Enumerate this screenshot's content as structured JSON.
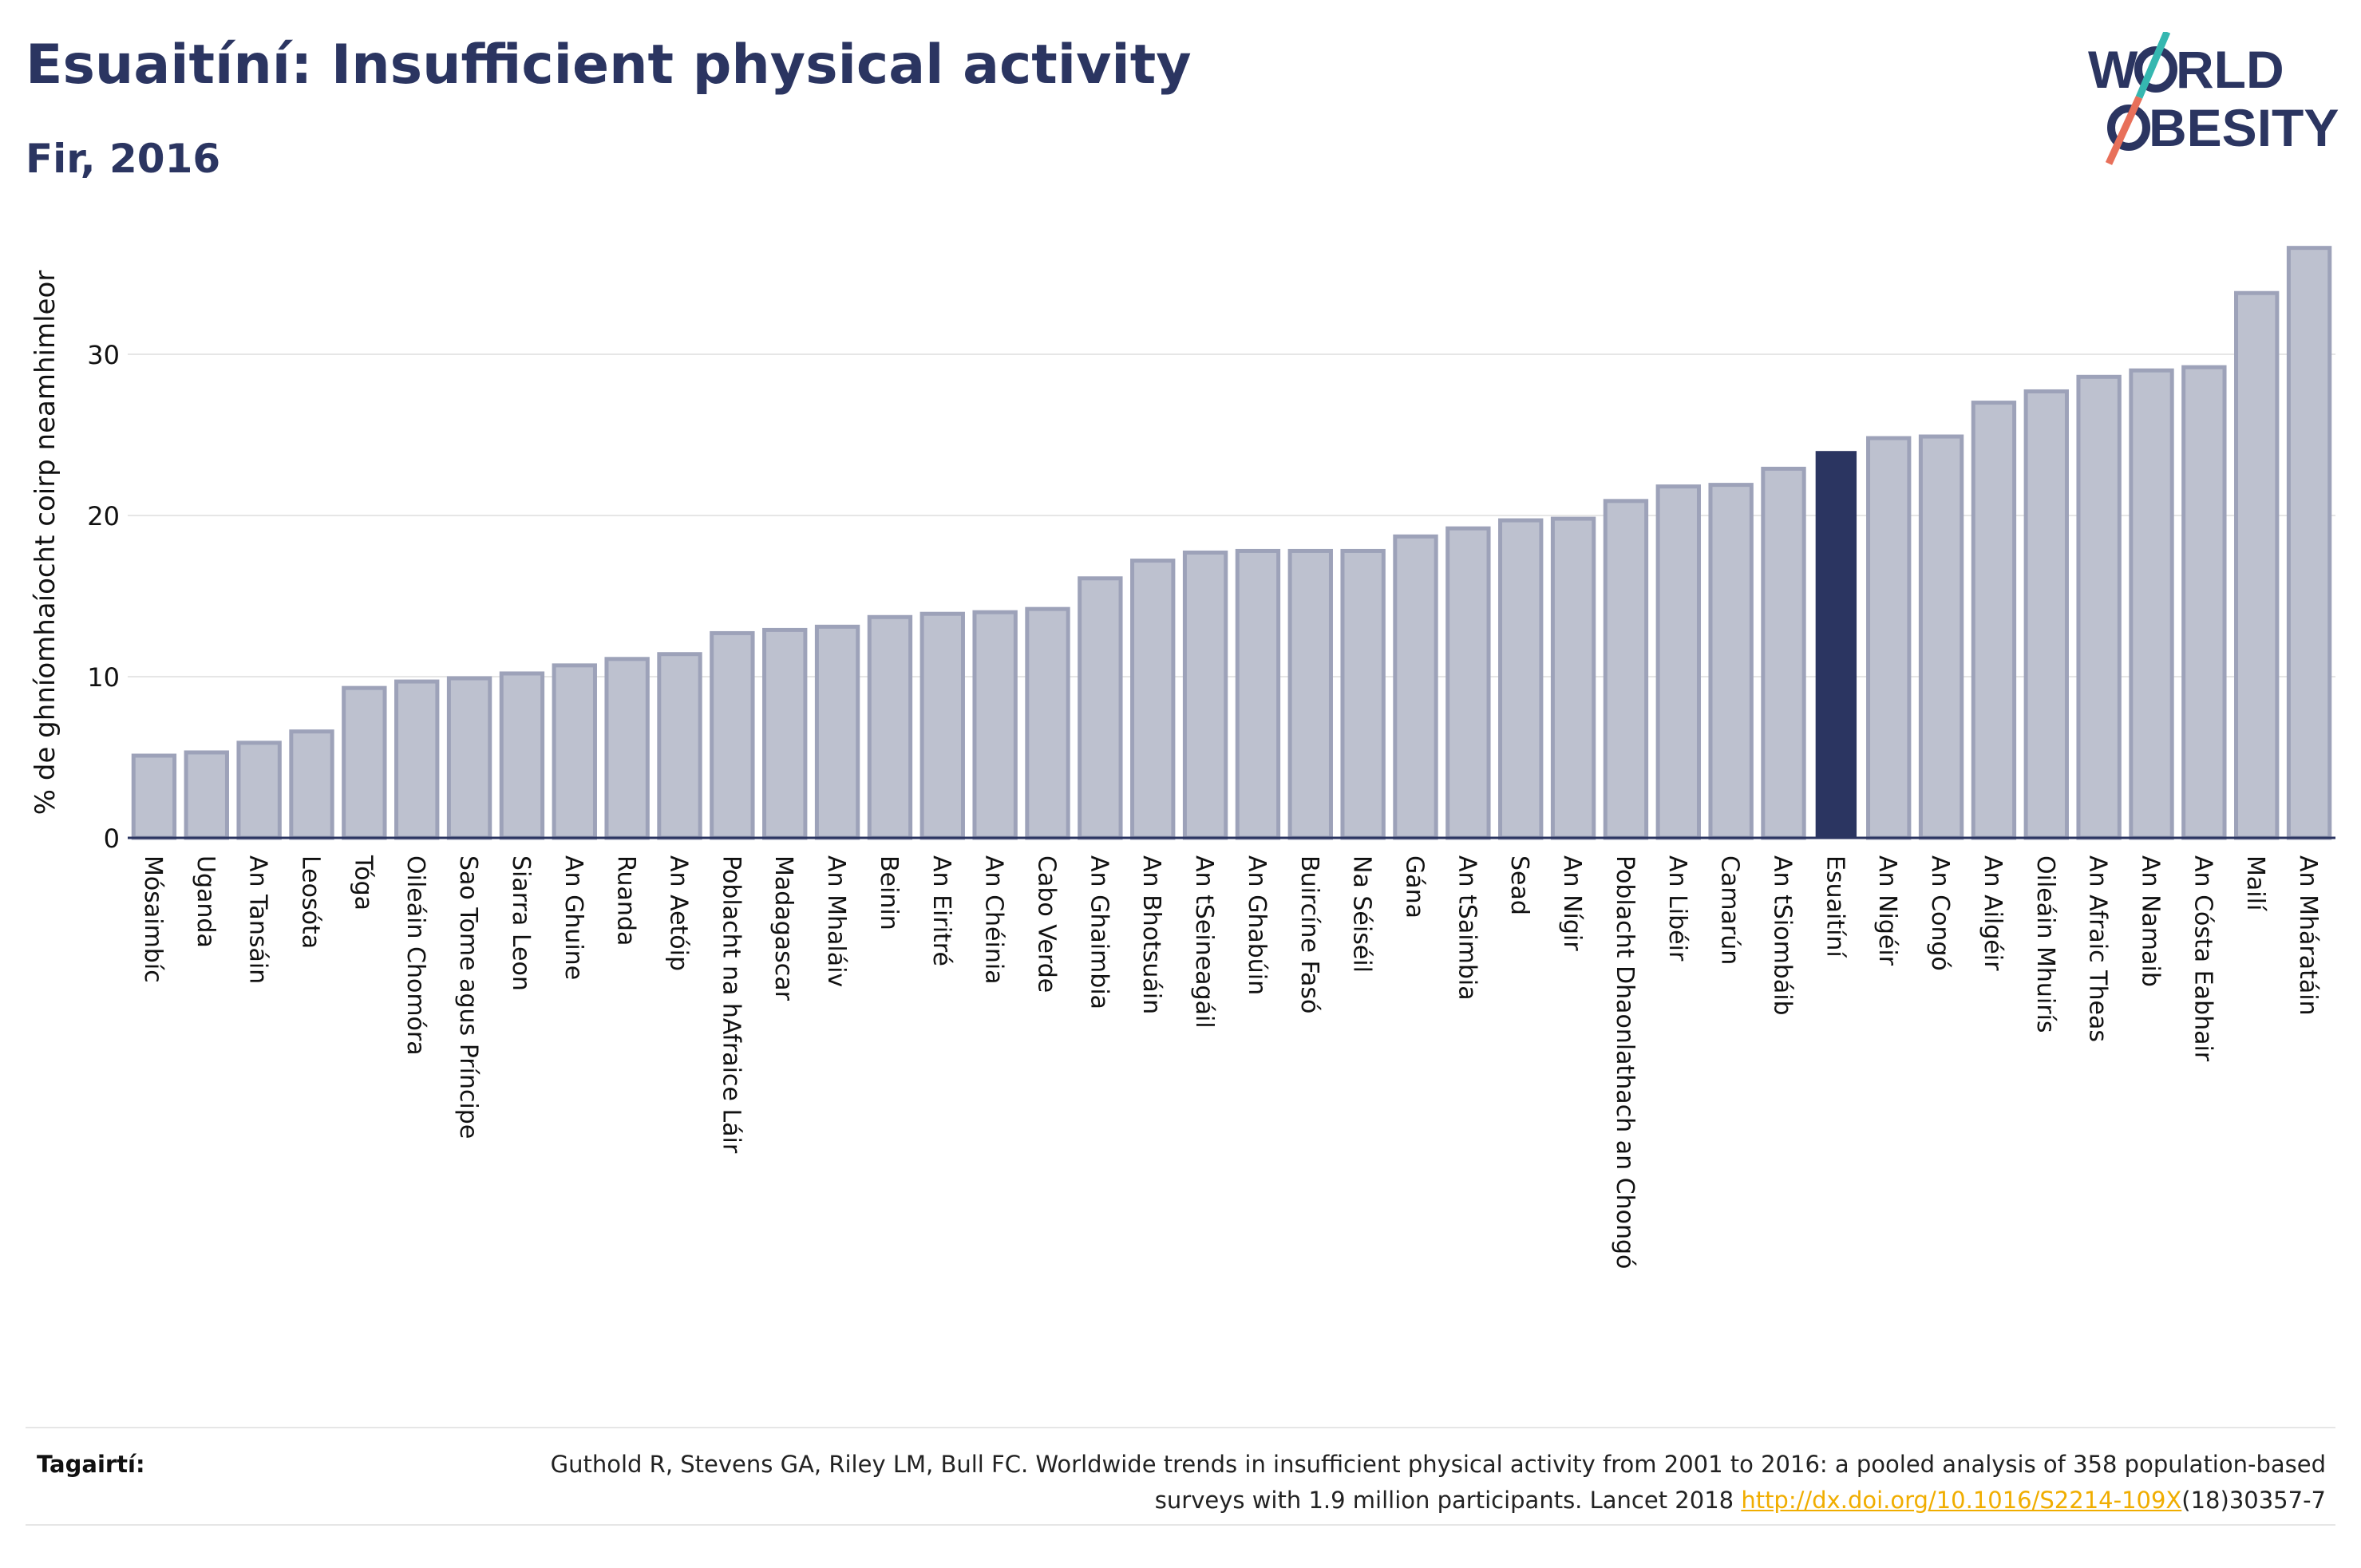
{
  "title": "Esuaitíní: Insufficient physical activity",
  "subtitle": "Fir, 2016",
  "logo": {
    "line1": "W",
    "line1b": "RLD",
    "line2": "BESITY",
    "slash_colors": [
      "#35b7b0",
      "#e8705a"
    ],
    "text_color": "#2b3561"
  },
  "footer": {
    "label": "Tagairtí:",
    "ref_before": "Guthold R, Stevens GA, Riley LM, Bull FC. Worldwide trends in insufficient physical activity from 2001 to 2016: a pooled analysis of 358 population-based surveys with 1.9 million participants. Lancet 2018 ",
    "ref_link": "http://dx.doi.org/10.1016/S2214-109X",
    "ref_after": "(18)30357-7"
  },
  "chart_data": {
    "type": "bar",
    "ylabel": "% de ghníomhaíocht coirp neamhimleor",
    "ylim": [
      0,
      37
    ],
    "yticks": [
      0,
      10,
      20,
      30
    ],
    "grid": true,
    "highlight": "Esuaitíní",
    "colors": {
      "bar": "#bdc1cf",
      "bar_border": "#9da2b9",
      "highlight": "#2b3561",
      "axis": "#2b3561",
      "grid": "#e6e6e6"
    },
    "categories": [
      "Mósaimbíc",
      "Uganda",
      "An Tansáin",
      "Leosóta",
      "Tóga",
      "Oileáin Chomóra",
      "Sao Tome agus Príncipe",
      "Siarra Leon",
      "An Ghuine",
      "Ruanda",
      "An Aetóip",
      "Poblacht na hAfraice Láir",
      "Madagascar",
      "An Mhaláiv",
      "Beinin",
      "An Eiritré",
      "An Chéinia",
      "Cabo Verde",
      "An Ghaimbia",
      "An Bhotsuáin",
      "An tSeineagáil",
      "An Ghabúin",
      "Buircíne Fasó",
      "Na Séiséil",
      "Gána",
      "An tSaimbia",
      "Sead",
      "An Nígir",
      "Poblacht Dhaonlathach an Chongó",
      "An Libéir",
      "Camarún",
      "An tSiombáib",
      "Esuaitíní",
      "An Nigéir",
      "An Congó",
      "An Ailgéir",
      "Oileáin Mhuirís",
      "An Afraic Theas",
      "An Namaib",
      "An Cósta Eabhair",
      "Mailí",
      "An Mháratáin"
    ],
    "values": [
      5.1,
      5.3,
      5.9,
      6.6,
      9.3,
      9.7,
      9.9,
      10.2,
      10.7,
      11.1,
      11.4,
      12.7,
      12.9,
      13.1,
      13.7,
      13.9,
      14.0,
      14.2,
      16.1,
      17.2,
      17.7,
      17.8,
      17.8,
      17.8,
      18.7,
      19.2,
      19.7,
      19.8,
      20.9,
      21.8,
      21.9,
      22.9,
      24.0,
      24.8,
      24.9,
      27.0,
      27.7,
      28.6,
      29.0,
      29.2,
      33.8,
      36.6
    ]
  }
}
